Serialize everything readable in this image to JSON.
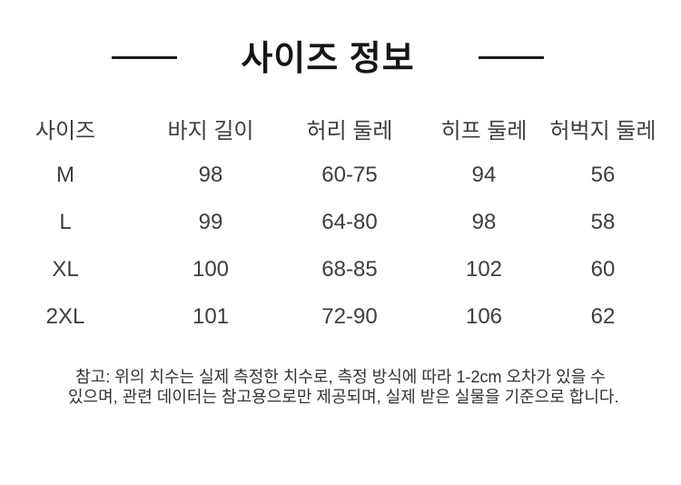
{
  "chart_data": {
    "type": "table",
    "title": "사이즈 정보",
    "columns": [
      "사이즈",
      "바지 길이",
      "허리 둘레",
      "히프 둘레",
      "허벅지 둘레"
    ],
    "rows": [
      [
        "M",
        "98",
        "60-75",
        "94",
        "56"
      ],
      [
        "L",
        "99",
        "64-80",
        "98",
        "58"
      ],
      [
        "XL",
        "100",
        "68-85",
        "102",
        "60"
      ],
      [
        "2XL",
        "101",
        "72-90",
        "106",
        "62"
      ]
    ],
    "note_lines": [
      "참고: 위의 치수는 실제 측정한 치수로, 측정 방식에 따라 1-2cm 오차가 있을 수",
      "있으며, 관련 데이터는 참고용으로만 제공되며, 실제 받은 실물을 기준으로 합니다."
    ],
    "layout": {
      "grid": "off",
      "borders": "none",
      "column_alignment": "center"
    }
  },
  "colors": {
    "background": "#ffffff",
    "title_text": "#161616",
    "title_rule": "#1a1a1a",
    "table_text": "#3e3e3e",
    "note_text": "#333333"
  }
}
